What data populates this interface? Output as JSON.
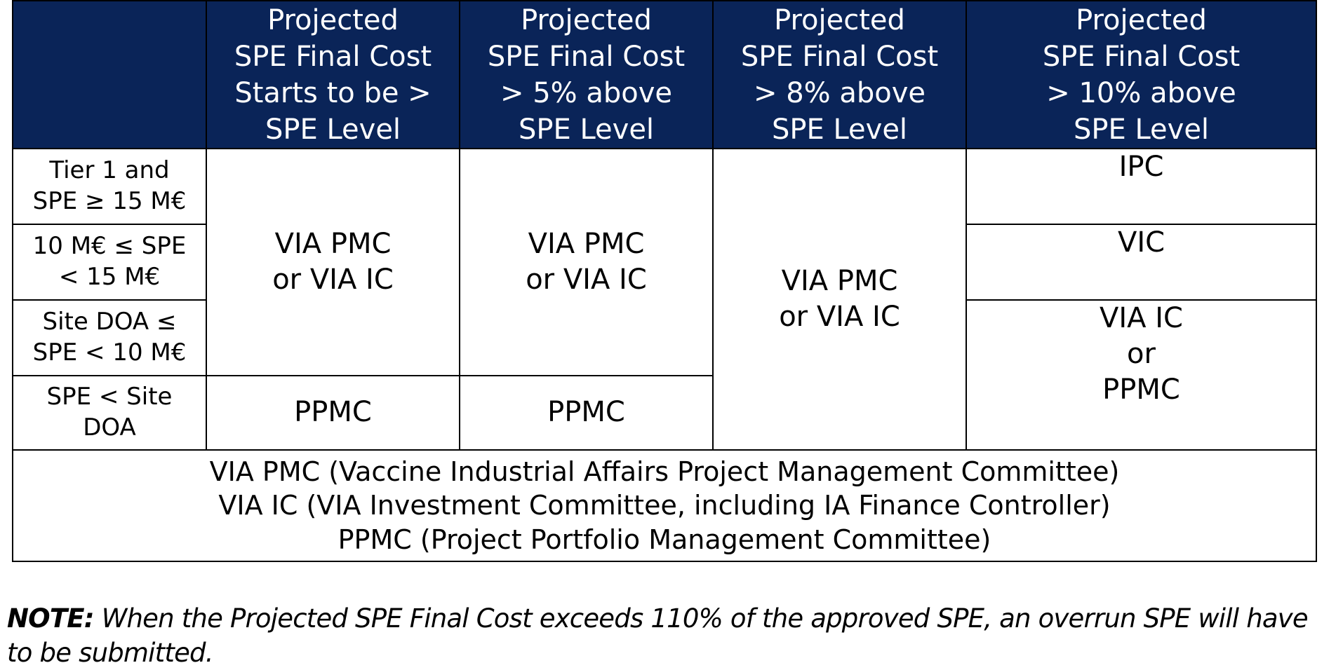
{
  "table": {
    "header": {
      "corner": "",
      "columns": [
        [
          "Projected",
          "SPE Final Cost",
          "Starts to be >",
          "SPE Level"
        ],
        [
          "Projected",
          "SPE Final Cost",
          "> 5% above",
          "SPE Level"
        ],
        [
          "Projected",
          "SPE Final Cost",
          "> 8% above",
          "SPE Level"
        ],
        [
          "Projected",
          "SPE Final Cost",
          "> 10% above",
          "SPE Level"
        ]
      ]
    },
    "row_labels": [
      [
        "Tier 1 and",
        "SPE ≥ 15 M€"
      ],
      [
        "10 M€ ≤ SPE",
        "< 15 M€"
      ],
      [
        "Site DOA ≤",
        "SPE < 10 M€"
      ],
      [
        "SPE < Site",
        "DOA"
      ]
    ],
    "cells": {
      "col1_top": [
        "VIA PMC",
        "or VIA IC"
      ],
      "col1_bottom": [
        "PPMC"
      ],
      "col2_top": [
        "VIA PMC",
        "or VIA IC"
      ],
      "col2_bottom": [
        "PPMC"
      ],
      "col3_all": [
        "VIA PMC",
        "or VIA IC"
      ],
      "col4_row1": [
        "IPC"
      ],
      "col4_row2": [
        "VIC"
      ],
      "col4_row3_4": [
        "VIA IC",
        "or",
        "PPMC"
      ]
    },
    "legend": [
      "VIA PMC (Vaccine Industrial Affairs Project Management Committee)",
      "VIA IC (VIA Investment Committee, including IA Finance Controller)",
      "PPMC (Project Portfolio Management Committee)"
    ]
  },
  "note": {
    "label": "NOTE:",
    "text": " When the Projected SPE Final Cost exceeds 110% of the approved SPE, an overrun SPE will have to be submitted."
  },
  "colors": {
    "header_background": "#0a2458",
    "header_text": "#ffffff",
    "border": "#000000"
  }
}
